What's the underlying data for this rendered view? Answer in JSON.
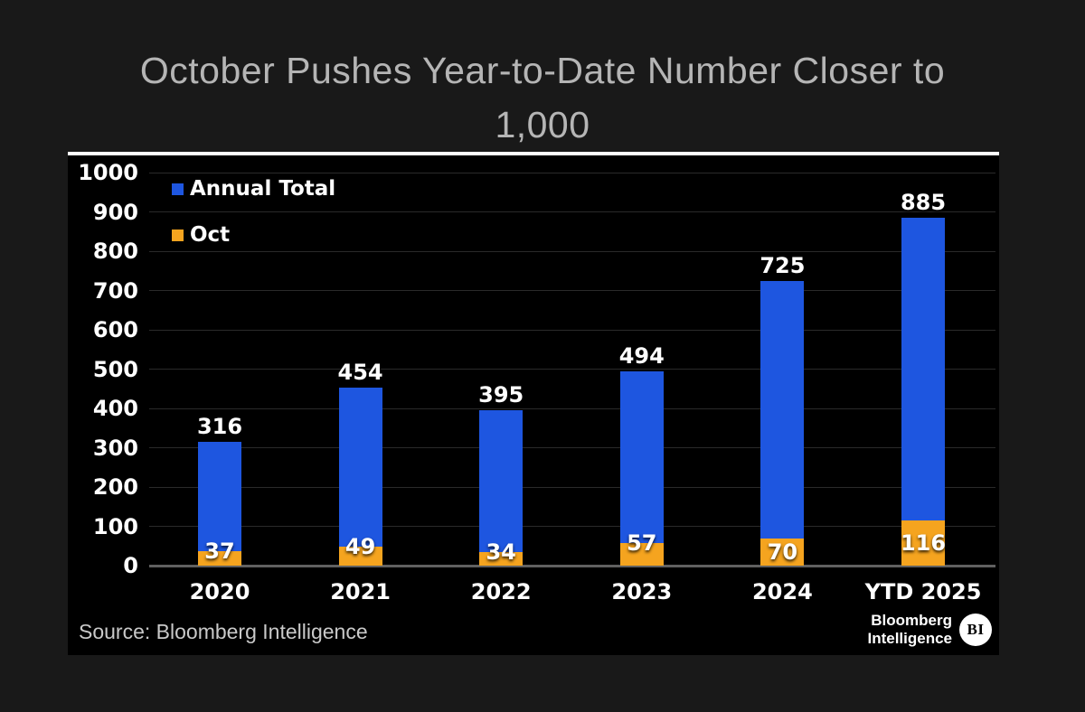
{
  "title": "October Pushes Year-to-Date Number Closer to 1,000",
  "legend": [
    {
      "label": "Annual Total",
      "color": "#1e56e0"
    },
    {
      "label": "Oct",
      "color": "#f5a41f"
    }
  ],
  "source": "Source: Bloomberg Intelligence",
  "logo": {
    "line1": "Bloomberg",
    "line2": "Intelligence",
    "badge": "BI"
  },
  "colors": {
    "page_background": "#191919",
    "panel_background": "#000000",
    "panel_top_border": "#ffffff",
    "annual_total_blue": "#1e56e0",
    "oct_orange": "#f5a41f",
    "title_gray": "#b5b5b5",
    "gridline": "#2a2a2a",
    "axis_baseline": "#606060",
    "label_white": "#ffffff"
  },
  "chart_data": {
    "type": "bar",
    "stacked_overlay": true,
    "title": "October Pushes Year-to-Date Number Closer to 1,000",
    "categories": [
      "2020",
      "2021",
      "2022",
      "2023",
      "2024",
      "YTD 2025"
    ],
    "series": [
      {
        "name": "Annual Total",
        "color": "#1e56e0",
        "values": [
          316,
          454,
          395,
          494,
          725,
          885
        ]
      },
      {
        "name": "Oct",
        "color": "#f5a41f",
        "values": [
          37,
          49,
          34,
          57,
          70,
          116
        ]
      }
    ],
    "xlabel": "",
    "ylabel": "",
    "ylim": [
      0,
      1000
    ],
    "ytick_step": 100,
    "grid": true,
    "legend_position": "upper-left",
    "note": "Oct values are drawn as the bottom (orange) portion of each annual-total bar"
  }
}
